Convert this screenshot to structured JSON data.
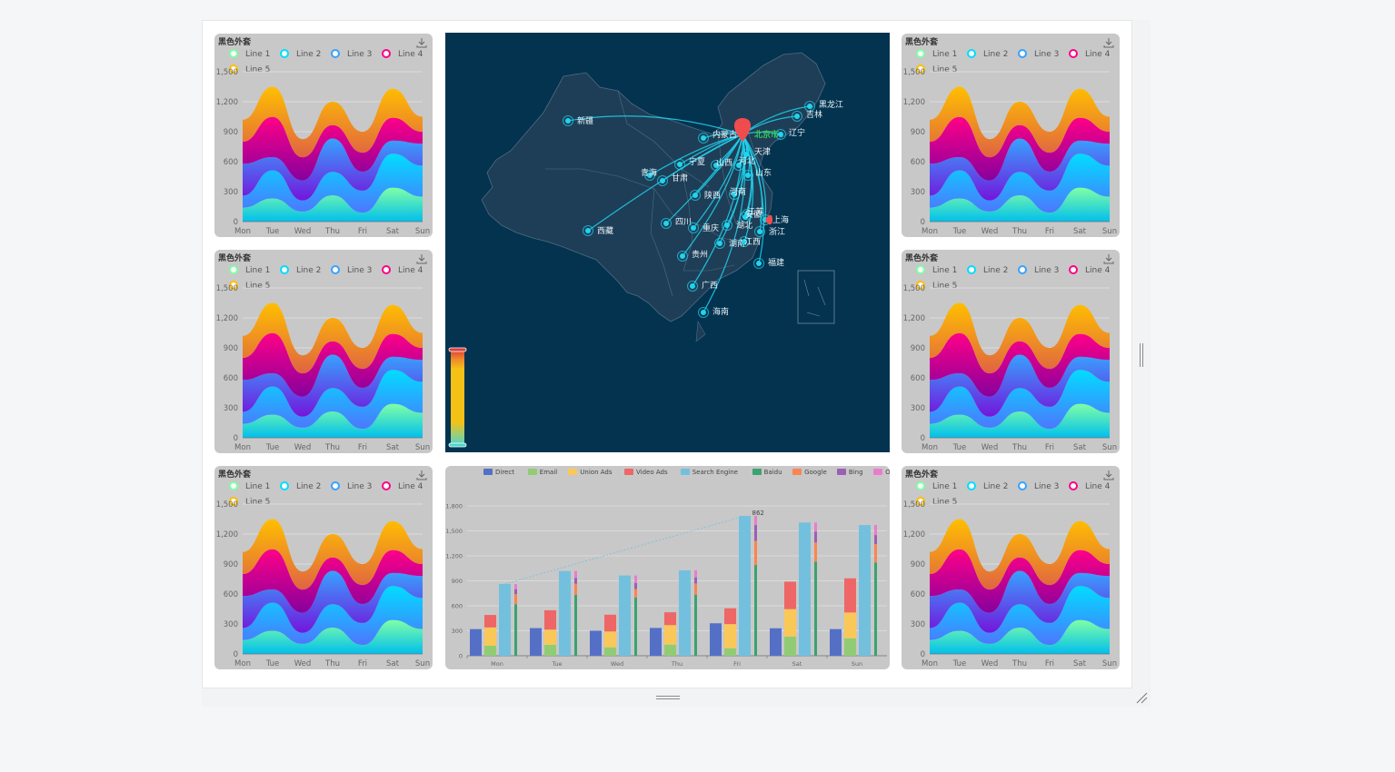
{
  "colors": {
    "line1": "#80FFA5",
    "line2": "#00DDFF",
    "line3": "#37A2FF",
    "line4": "#FF0087",
    "line5": "#FFBF00",
    "map_bg": "#04334f",
    "flow": "#20d4ee"
  },
  "area_panel": {
    "title": "黑色外套",
    "download_icon": "download-icon",
    "legend": [
      "Line 1",
      "Line 2",
      "Line 3",
      "Line 4",
      "Line 5"
    ],
    "y_ticks": [
      "0",
      "300",
      "600",
      "900",
      "1,200",
      "1,500"
    ],
    "x_ticks": [
      "Mon",
      "Tue",
      "Wed",
      "Thu",
      "Fri",
      "Sat",
      "Sun"
    ]
  },
  "chart_data": [
    {
      "type": "area",
      "title": "黑色外套",
      "stacked": true,
      "categories": [
        "Mon",
        "Tue",
        "Wed",
        "Thu",
        "Fri",
        "Sat",
        "Sun"
      ],
      "ylim": [
        0,
        1500
      ],
      "series": [
        {
          "name": "Line 1",
          "values": [
            140,
            232,
            101,
            264,
            90,
            340,
            250
          ]
        },
        {
          "name": "Line 2",
          "values": [
            120,
            282,
            111,
            234,
            220,
            340,
            310
          ]
        },
        {
          "name": "Line 3",
          "values": [
            320,
            132,
            201,
            334,
            190,
            130,
            220
          ]
        },
        {
          "name": "Line 4",
          "values": [
            220,
            402,
            231,
            134,
            190,
            230,
            120
          ]
        },
        {
          "name": "Line 5",
          "values": [
            220,
            302,
            181,
            234,
            210,
            290,
            150
          ]
        }
      ],
      "legend_position": "top"
    },
    {
      "type": "bar",
      "title": "",
      "categories": [
        "Mon",
        "Tue",
        "Wed",
        "Thu",
        "Fri",
        "Sat",
        "Sun"
      ],
      "legend": [
        "Direct",
        "Email",
        "Union Ads",
        "Video Ads",
        "Search Engine",
        "Baidu",
        "Google",
        "Bing",
        "Others"
      ],
      "y_ticks": [
        "0",
        "300",
        "600",
        "900",
        "1,200",
        "1,500",
        "1,800"
      ],
      "ylim": [
        0,
        1800
      ],
      "series": [
        {
          "name": "Direct",
          "stack": "a",
          "values": [
            320,
            332,
            301,
            334,
            390,
            330,
            320
          ]
        },
        {
          "name": "Email",
          "stack": "b",
          "values": [
            120,
            132,
            101,
            134,
            90,
            230,
            210
          ]
        },
        {
          "name": "Union Ads",
          "stack": "b",
          "values": [
            220,
            182,
            191,
            234,
            290,
            330,
            310
          ]
        },
        {
          "name": "Video Ads",
          "stack": "b",
          "values": [
            150,
            232,
            201,
            154,
            190,
            330,
            410
          ]
        },
        {
          "name": "Search Engine",
          "stack": "c",
          "values": [
            862,
            1018,
            964,
            1026,
            1679,
            1600,
            1570
          ]
        },
        {
          "name": "Baidu",
          "stack": "d",
          "values": [
            620,
            732,
            701,
            734,
            1090,
            1130,
            1120
          ]
        },
        {
          "name": "Google",
          "stack": "d",
          "values": [
            120,
            132,
            101,
            134,
            290,
            230,
            220
          ]
        },
        {
          "name": "Bing",
          "stack": "d",
          "values": [
            60,
            72,
            71,
            74,
            190,
            130,
            110
          ]
        },
        {
          "name": "Others",
          "stack": "d",
          "values": [
            62,
            82,
            91,
            84,
            109,
            110,
            120
          ]
        }
      ],
      "markline_label": "862",
      "legend_position": "top"
    }
  ],
  "map": {
    "capital": "北京市",
    "provinces": [
      {
        "name": "新疆"
      },
      {
        "name": "西藏"
      },
      {
        "name": "内蒙古"
      },
      {
        "name": "黑龙江"
      },
      {
        "name": "吉林"
      },
      {
        "name": "辽宁"
      },
      {
        "name": "河北"
      },
      {
        "name": "天津"
      },
      {
        "name": "山西"
      },
      {
        "name": "山东"
      },
      {
        "name": "宁夏"
      },
      {
        "name": "青海"
      },
      {
        "name": "甘肃"
      },
      {
        "name": "陕西"
      },
      {
        "name": "河南"
      },
      {
        "name": "江苏"
      },
      {
        "name": "安徽"
      },
      {
        "name": "上海"
      },
      {
        "name": "四川"
      },
      {
        "name": "重庆"
      },
      {
        "name": "湖北"
      },
      {
        "name": "浙江"
      },
      {
        "name": "湖南"
      },
      {
        "name": "江西"
      },
      {
        "name": "贵州"
      },
      {
        "name": "福建"
      },
      {
        "name": "广西"
      },
      {
        "name": "海南"
      }
    ]
  }
}
